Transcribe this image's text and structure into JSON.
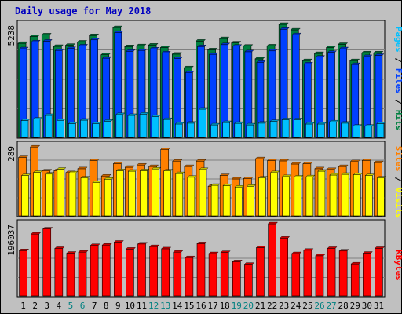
{
  "chart_data": {
    "type": "bar",
    "title": "Daily usage for May 2018",
    "categories": [
      "1",
      "2",
      "3",
      "4",
      "5",
      "6",
      "7",
      "8",
      "9",
      "10",
      "11",
      "12",
      "13",
      "14",
      "15",
      "16",
      "17",
      "18",
      "19",
      "20",
      "21",
      "22",
      "23",
      "24",
      "25",
      "26",
      "27",
      "28",
      "29",
      "30",
      "31"
    ],
    "weekend_days": [
      "5",
      "6",
      "12",
      "13",
      "19",
      "20",
      "26",
      "27"
    ],
    "panels": [
      {
        "id": "hits",
        "ymax": 5238,
        "ytick_label": "5238",
        "series": [
          {
            "name": "Hits",
            "color": "#008040",
            "values": [
              4360,
              4670,
              4750,
              4220,
              4270,
              4420,
              4720,
              3830,
              5090,
              4210,
              4250,
              4280,
              4160,
              3860,
              3230,
              4460,
              4060,
              4580,
              4380,
              4230,
              3640,
              4240,
              5238,
              4980,
              3560,
              3890,
              4160,
              4310,
              3560,
              3920,
              3920
            ]
          },
          {
            "name": "Files",
            "color": "#0040ff",
            "values": [
              4110,
              4430,
              4460,
              4030,
              4120,
              4240,
              4520,
              3670,
              4860,
              3990,
              4030,
              4100,
              3920,
              3650,
              3010,
              4210,
              3850,
              4300,
              4230,
              3970,
              3480,
              4010,
              5010,
              4760,
              3410,
              3720,
              3940,
              4110,
              3380,
              3750,
              3800
            ]
          },
          {
            "name": "Pages",
            "color": "#00c0ff",
            "values": [
              780,
              850,
              1020,
              790,
              640,
              800,
              630,
              750,
              1060,
              1020,
              1080,
              960,
              830,
              620,
              660,
              1310,
              580,
              690,
              650,
              580,
              660,
              740,
              820,
              820,
              620,
              620,
              720,
              660,
              520,
              520,
              640
            ]
          }
        ]
      },
      {
        "id": "visits",
        "ymax": 289,
        "ytick_label": "289",
        "series": [
          {
            "name": "Visits",
            "color": "#ff8000",
            "values": [
              239,
              282,
              184,
              185,
              177,
              193,
              226,
              163,
              213,
              199,
              208,
              202,
              272,
              224,
              202,
              224,
              121,
              165,
              151,
              153,
              234,
              226,
              225,
              212,
              213,
              193,
              190,
              202,
              222,
              227,
              218
            ]
          },
          {
            "name": "Sites",
            "color": "#ffff00",
            "values": [
              165,
              178,
              171,
              191,
              176,
              155,
              137,
              150,
              185,
              183,
              185,
              192,
              184,
              173,
              158,
              190,
              125,
              124,
              118,
              121,
              155,
              177,
              161,
              159,
              160,
              183,
              167,
              170,
              168,
              165,
              155
            ]
          }
        ]
      },
      {
        "id": "kbytes",
        "ymax": 196037,
        "ytick_label": "196037",
        "series": [
          {
            "name": "KBytes",
            "color": "#ff0000",
            "values": [
              123000,
              168000,
              182000,
              129000,
              116000,
              119000,
              137000,
              138000,
              146000,
              127000,
              141000,
              134000,
              128000,
              119000,
              104000,
              142000,
              115000,
              118000,
              93000,
              86000,
              131000,
              196037,
              157000,
              115000,
              124000,
              109000,
              129000,
              122000,
              87000,
              116000,
              129000
            ]
          }
        ]
      }
    ]
  }
}
